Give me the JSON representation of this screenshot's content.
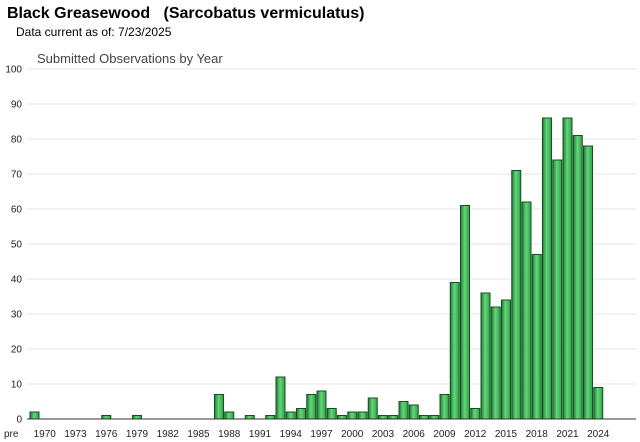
{
  "header": {
    "title": "Black Greasewood   (Sarcobatus vermiculatus)",
    "data_current": "Data current as of: 7/23/2025"
  },
  "colors": {
    "bar": "#3fbf5a",
    "bar_dark": "#1f7a33",
    "bar_edge": "#1a4d22"
  },
  "chart_data": {
    "type": "bar",
    "title": "Submitted Observations by Year",
    "xlabel": "",
    "ylabel": "",
    "ylim": [
      0,
      100
    ],
    "yticks": [
      0,
      10,
      20,
      30,
      40,
      50,
      60,
      70,
      80,
      90,
      100
    ],
    "grid": true,
    "categories": [
      "pre",
      "1970",
      "1971",
      "1972",
      "1973",
      "1974",
      "1975",
      "1976",
      "1977",
      "1978",
      "1979",
      "1980",
      "1981",
      "1982",
      "1983",
      "1984",
      "1985",
      "1986",
      "1987",
      "1988",
      "1989",
      "1990",
      "1991",
      "1992",
      "1993",
      "1994",
      "1995",
      "1996",
      "1997",
      "1998",
      "1999",
      "2000",
      "2001",
      "2002",
      "2003",
      "2004",
      "2005",
      "2006",
      "2007",
      "2008",
      "2009",
      "2010",
      "2011",
      "2012",
      "2013",
      "2014",
      "2015",
      "2016",
      "2017",
      "2018",
      "2019",
      "2020",
      "2021",
      "2022",
      "2023",
      "2024",
      "2025"
    ],
    "values": [
      2,
      0,
      0,
      0,
      0,
      0,
      0,
      1,
      0,
      0,
      1,
      0,
      0,
      0,
      0,
      0,
      0,
      0,
      7,
      2,
      0,
      1,
      0,
      1,
      12,
      2,
      3,
      7,
      8,
      3,
      1,
      2,
      2,
      6,
      1,
      1,
      5,
      4,
      1,
      1,
      7,
      39,
      61,
      3,
      36,
      32,
      34,
      71,
      62,
      47,
      86,
      74,
      86,
      81,
      78,
      9,
      0
    ],
    "tick_labels": [
      "pre",
      "1970",
      "1973",
      "1976",
      "1979",
      "1982",
      "1985",
      "1988",
      "1991",
      "1994",
      "1997",
      "2000",
      "2003",
      "2006",
      "2009",
      "2012",
      "2015",
      "2018",
      "2021",
      "2024"
    ]
  }
}
